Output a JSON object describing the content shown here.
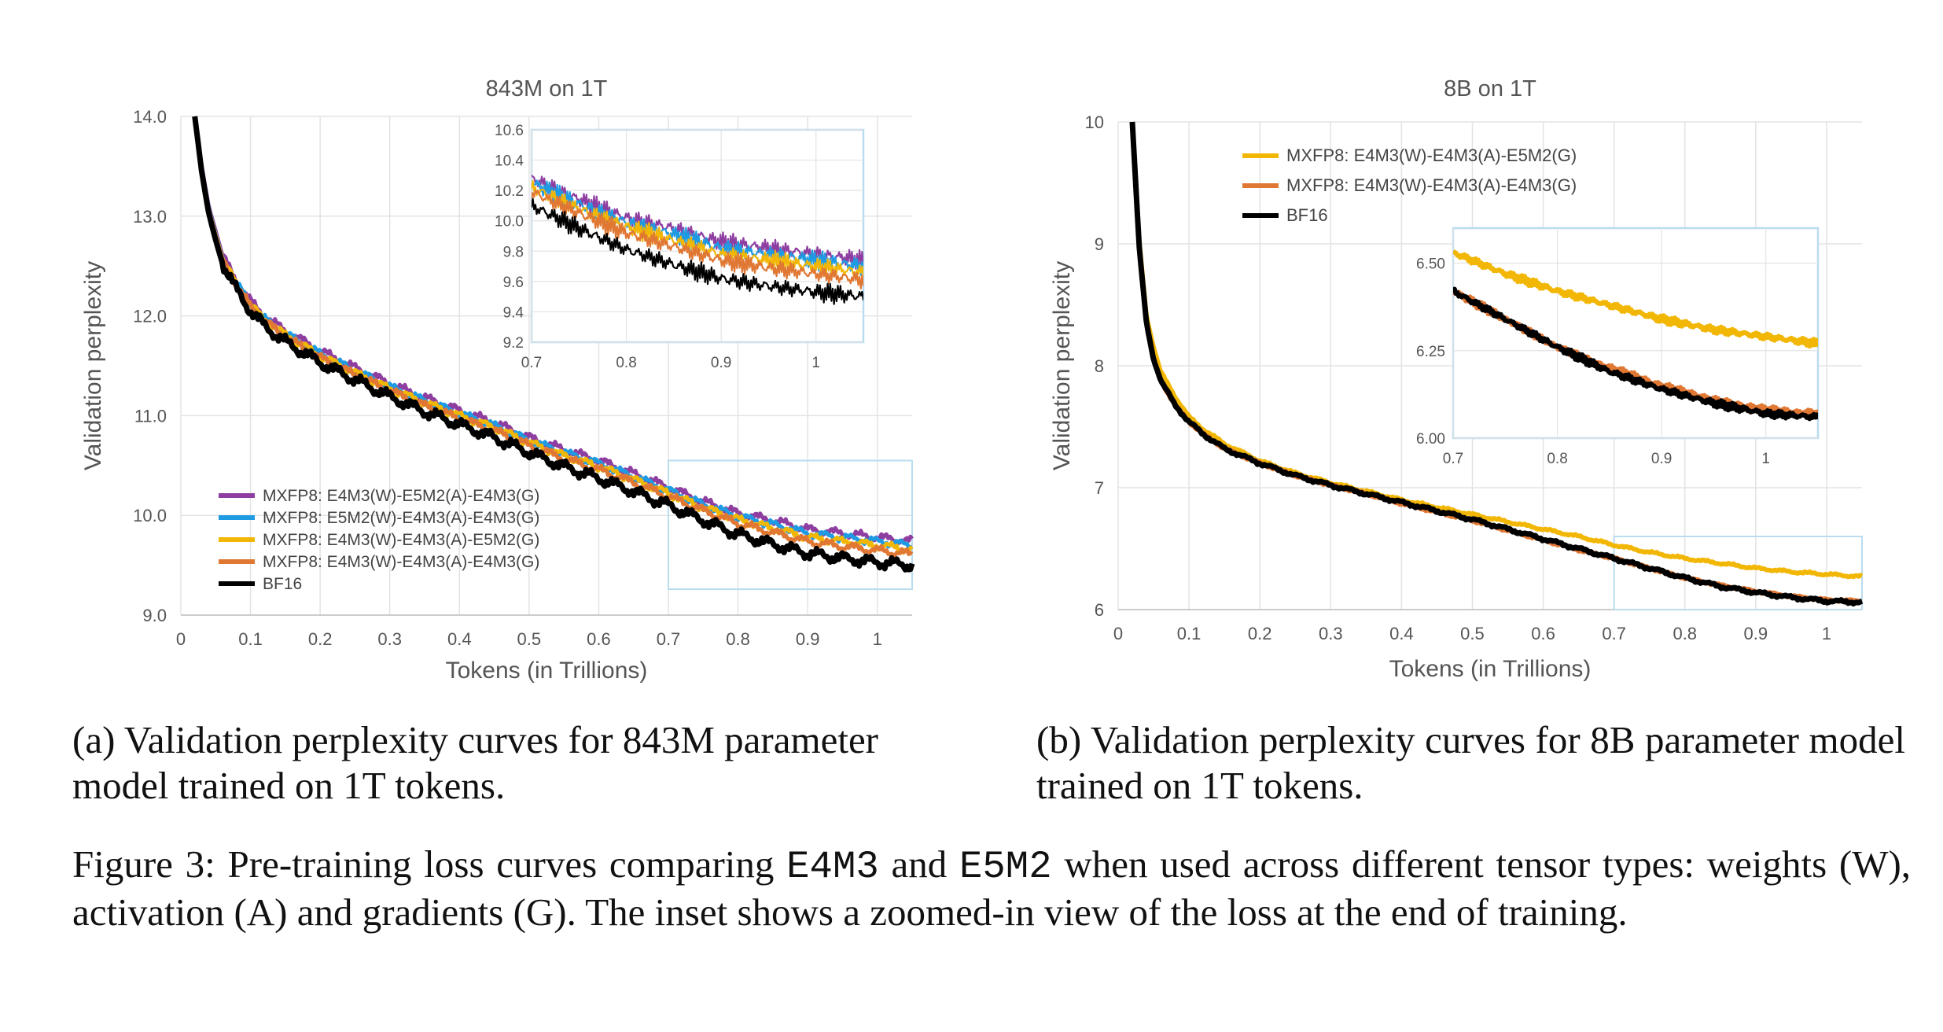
{
  "captions": {
    "a": "(a) Validation perplexity curves for 843M parameter model trained on 1T tokens.",
    "b": "(b) Validation perplexity curves for 8B parameter model trained on 1T tokens.",
    "figure_prefix": "Figure 3: Pre-training loss curves comparing",
    "figure_code1": "E4M3",
    "figure_and": "and",
    "figure_code2": "E5M2",
    "figure_suffix": "when used across different tensor types: weights (W), activation (A) and gradients (G). The inset shows a zoomed-in view of the loss at the end of training."
  },
  "colors": {
    "purple": "#8e3ea0",
    "blue": "#1f9be3",
    "yellow": "#f2b705",
    "orange": "#e07733",
    "black": "#000000",
    "grid": "#e3e3e3",
    "inset_border": "#b9dcef",
    "text": "#555555"
  },
  "chart_data": [
    {
      "type": "line",
      "title": "843M on 1T",
      "xlabel": "Tokens (in Trillions)",
      "ylabel": "Validation perplexity",
      "xlim": [
        0,
        1.05
      ],
      "ylim": [
        9.0,
        14.0
      ],
      "xticks": [
        0,
        0.1,
        0.2,
        0.3,
        0.4,
        0.5,
        0.6,
        0.7,
        0.8,
        0.9,
        1
      ],
      "xtick_labels": [
        "0",
        "0.1",
        "0.2",
        "0.3",
        "0.4",
        "0.5",
        "0.6",
        "0.7",
        "0.8",
        "0.9",
        "1"
      ],
      "yticks": [
        9,
        10,
        11,
        12,
        13,
        14
      ],
      "ytick_labels": [
        "9.0",
        "10.0",
        "11.0",
        "12.0",
        "13.0",
        "14.0"
      ],
      "grid": true,
      "legend_position": "lower-left",
      "x": [
        0.02,
        0.03,
        0.04,
        0.05,
        0.06,
        0.08,
        0.1,
        0.12,
        0.15,
        0.2,
        0.25,
        0.3,
        0.35,
        0.4,
        0.45,
        0.5,
        0.55,
        0.6,
        0.65,
        0.7,
        0.75,
        0.8,
        0.85,
        0.9,
        0.95,
        1.0,
        1.05
      ],
      "series": [
        {
          "name": "MXFP8: E4M3(W)-E5M2(A)-E4M3(G)",
          "color": "#8e3ea0",
          "values": [
            14.0,
            13.5,
            13.1,
            12.85,
            12.6,
            12.35,
            12.15,
            12.0,
            11.85,
            11.65,
            11.48,
            11.32,
            11.18,
            11.05,
            10.93,
            10.78,
            10.66,
            10.55,
            10.42,
            10.28,
            10.14,
            10.02,
            9.95,
            9.86,
            9.82,
            9.78,
            9.74
          ]
        },
        {
          "name": "MXFP8: E5M2(W)-E4M3(A)-E4M3(G)",
          "color": "#1f9be3",
          "values": [
            14.0,
            13.48,
            13.08,
            12.82,
            12.58,
            12.32,
            12.12,
            11.97,
            11.82,
            11.62,
            11.45,
            11.29,
            11.15,
            11.02,
            10.9,
            10.75,
            10.63,
            10.52,
            10.39,
            10.25,
            10.11,
            9.99,
            9.91,
            9.82,
            9.78,
            9.74,
            9.7
          ]
        },
        {
          "name": "MXFP8: E4M3(W)-E4M3(A)-E5M2(G)",
          "color": "#f2b705",
          "values": [
            14.0,
            13.47,
            13.07,
            12.81,
            12.57,
            12.31,
            12.11,
            11.96,
            11.81,
            11.6,
            11.43,
            11.27,
            11.13,
            11.0,
            10.88,
            10.73,
            10.6,
            10.49,
            10.36,
            10.22,
            10.08,
            9.96,
            9.87,
            9.78,
            9.74,
            9.7,
            9.66
          ]
        },
        {
          "name": "MXFP8: E4M3(W)-E4M3(A)-E4M3(G)",
          "color": "#e07733",
          "values": [
            14.0,
            13.46,
            13.06,
            12.8,
            12.56,
            12.3,
            12.1,
            11.95,
            11.79,
            11.58,
            11.41,
            11.25,
            11.1,
            10.97,
            10.85,
            10.7,
            10.57,
            10.46,
            10.33,
            10.19,
            10.05,
            9.92,
            9.83,
            9.74,
            9.69,
            9.65,
            9.61
          ]
        },
        {
          "name": "BF16",
          "color": "#000000",
          "values": [
            14.0,
            13.44,
            13.03,
            12.76,
            12.52,
            12.26,
            12.05,
            11.9,
            11.74,
            11.53,
            11.36,
            11.19,
            11.04,
            10.91,
            10.78,
            10.63,
            10.49,
            10.37,
            10.24,
            10.1,
            9.95,
            9.81,
            9.71,
            9.62,
            9.57,
            9.53,
            9.5
          ]
        }
      ],
      "inset": {
        "xlim": [
          0.7,
          1.05
        ],
        "ylim": [
          9.2,
          10.6
        ],
        "xticks": [
          0.7,
          0.8,
          0.9,
          1
        ],
        "xtick_labels": [
          "0.7",
          "0.8",
          "0.9",
          "1"
        ],
        "yticks": [
          9.2,
          9.4,
          9.6,
          9.8,
          10.0,
          10.2,
          10.4,
          10.6
        ],
        "ytick_labels": [
          "9.2",
          "9.4",
          "9.6",
          "9.8",
          "10.0",
          "10.2",
          "10.4",
          "10.6"
        ],
        "highlight": {
          "x": [
            0.7,
            1.05
          ],
          "y": [
            9.26,
            10.55
          ]
        }
      }
    },
    {
      "type": "line",
      "title": "8B on 1T",
      "xlabel": "Tokens (in Trillions)",
      "ylabel": "Validation perplexity",
      "xlim": [
        0,
        1.05
      ],
      "ylim": [
        6,
        10
      ],
      "xticks": [
        0,
        0.1,
        0.2,
        0.3,
        0.4,
        0.5,
        0.6,
        0.7,
        0.8,
        0.9,
        1
      ],
      "xtick_labels": [
        "0",
        "0.1",
        "0.2",
        "0.3",
        "0.4",
        "0.5",
        "0.6",
        "0.7",
        "0.8",
        "0.9",
        "1"
      ],
      "yticks": [
        6,
        7,
        8,
        9,
        10
      ],
      "ytick_labels": [
        "6",
        "7",
        "8",
        "9",
        "10"
      ],
      "grid": true,
      "legend_position": "top-left",
      "x": [
        0.02,
        0.03,
        0.04,
        0.05,
        0.06,
        0.08,
        0.1,
        0.12,
        0.15,
        0.2,
        0.25,
        0.3,
        0.35,
        0.4,
        0.45,
        0.5,
        0.55,
        0.6,
        0.65,
        0.7,
        0.75,
        0.8,
        0.85,
        0.9,
        0.95,
        1.0,
        1.05
      ],
      "series": [
        {
          "name": "MXFP8: E4M3(W)-E4M3(A)-E5M2(G)",
          "color": "#f2b705",
          "values": [
            10.0,
            9.0,
            8.4,
            8.15,
            7.95,
            7.75,
            7.58,
            7.48,
            7.36,
            7.22,
            7.12,
            7.04,
            6.97,
            6.9,
            6.84,
            6.78,
            6.72,
            6.66,
            6.6,
            6.53,
            6.47,
            6.42,
            6.38,
            6.34,
            6.31,
            6.29,
            6.27
          ]
        },
        {
          "name": "MXFP8: E4M3(W)-E4M3(A)-E4M3(G)",
          "color": "#e07733",
          "values": [
            10.0,
            8.95,
            8.35,
            8.05,
            7.88,
            7.68,
            7.54,
            7.44,
            7.32,
            7.2,
            7.1,
            7.02,
            6.95,
            6.87,
            6.8,
            6.73,
            6.65,
            6.57,
            6.49,
            6.42,
            6.34,
            6.26,
            6.2,
            6.15,
            6.11,
            6.08,
            6.07
          ]
        },
        {
          "name": "BF16",
          "color": "#000000",
          "values": [
            10.0,
            8.95,
            8.35,
            8.05,
            7.88,
            7.68,
            7.54,
            7.44,
            7.32,
            7.2,
            7.1,
            7.02,
            6.95,
            6.88,
            6.81,
            6.74,
            6.66,
            6.58,
            6.5,
            6.42,
            6.34,
            6.26,
            6.19,
            6.14,
            6.1,
            6.07,
            6.06
          ]
        }
      ],
      "inset": {
        "xlim": [
          0.7,
          1.05
        ],
        "ylim": [
          6.0,
          6.6
        ],
        "xticks": [
          0.7,
          0.8,
          0.9,
          1
        ],
        "xtick_labels": [
          "0.7",
          "0.8",
          "0.9",
          "1"
        ],
        "yticks": [
          6.0,
          6.25,
          6.5
        ],
        "ytick_labels": [
          "6.00",
          "6.25",
          "6.50"
        ],
        "highlight": {
          "x": [
            0.7,
            1.05
          ],
          "y": [
            6.0,
            6.6
          ]
        }
      }
    }
  ]
}
